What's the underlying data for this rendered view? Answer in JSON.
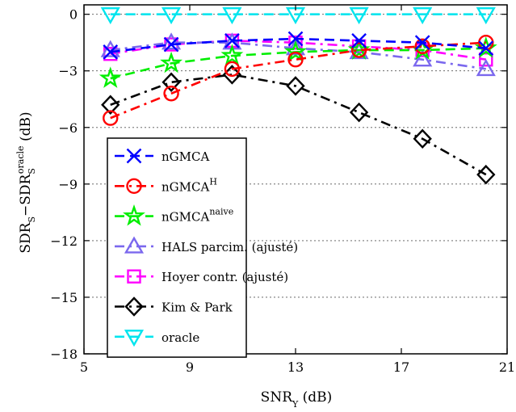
{
  "chart_data": {
    "type": "line",
    "x": [
      6,
      8.3,
      10.6,
      13,
      15.4,
      17.8,
      20.2
    ],
    "xlim": [
      5,
      21
    ],
    "ylim": [
      -18,
      0.5
    ],
    "xticks": [
      "5",
      "9",
      "13",
      "17",
      "21"
    ],
    "yticks": [
      "0",
      "−3",
      "−6",
      "−9",
      "−12",
      "−15",
      "−18"
    ],
    "xticks_values": [
      5,
      9,
      13,
      17,
      21
    ],
    "yticks_values": [
      0,
      -3,
      -6,
      -9,
      -12,
      -15,
      -18
    ],
    "grid": "horizontal-dotted",
    "legend_position": "center-left",
    "xlabel": {
      "main": "SNR",
      "sub": "Y",
      "unit": " (dB)"
    },
    "ylabel": {
      "a": "SDR",
      "a_sub": "S",
      "sep": "−SDR",
      "b_sub": "S",
      "b_sup": "oracle",
      "unit": " (dB)"
    },
    "series": [
      {
        "name": "nGMCA",
        "sup": "",
        "color": "#0000ff",
        "marker": "x",
        "dash": "dashed",
        "values": [
          -2.0,
          -1.6,
          -1.4,
          -1.3,
          -1.4,
          -1.5,
          -1.8
        ]
      },
      {
        "name": "nGMCA",
        "sup": "H",
        "color": "#ff0000",
        "marker": "circle",
        "dash": "dashdot",
        "values": [
          -5.5,
          -4.2,
          -2.9,
          -2.4,
          -1.9,
          -1.7,
          -1.5
        ]
      },
      {
        "name": "nGMCA",
        "sup": "naive",
        "color": "#00ee00",
        "marker": "star",
        "dash": "dashed",
        "values": [
          -3.4,
          -2.6,
          -2.2,
          -2.0,
          -1.9,
          -1.9,
          -1.8
        ]
      },
      {
        "name": "HALS parcim. (ajusté)",
        "sup": "",
        "color": "#7b68ee",
        "marker": "triangle-up",
        "dash": "dashdot",
        "values": [
          -1.9,
          -1.5,
          -1.5,
          -1.8,
          -2.0,
          -2.4,
          -2.9
        ]
      },
      {
        "name": "Hoyer contr. (ajusté)",
        "sup": "",
        "color": "#ff00ff",
        "marker": "square",
        "dash": "dashdot",
        "values": [
          -2.1,
          -1.6,
          -1.4,
          -1.5,
          -1.7,
          -1.9,
          -2.4
        ]
      },
      {
        "name": "Kim & Park",
        "sup": "",
        "color": "#000000",
        "marker": "diamond",
        "dash": "dashdot",
        "values": [
          -4.8,
          -3.6,
          -3.2,
          -3.8,
          -5.2,
          -6.6,
          -8.5
        ]
      },
      {
        "name": "oracle",
        "sup": "",
        "color": "#00e5ee",
        "marker": "triangle-down",
        "dash": "dashed",
        "values": [
          0,
          0,
          0,
          0,
          0,
          0,
          0
        ]
      }
    ]
  }
}
